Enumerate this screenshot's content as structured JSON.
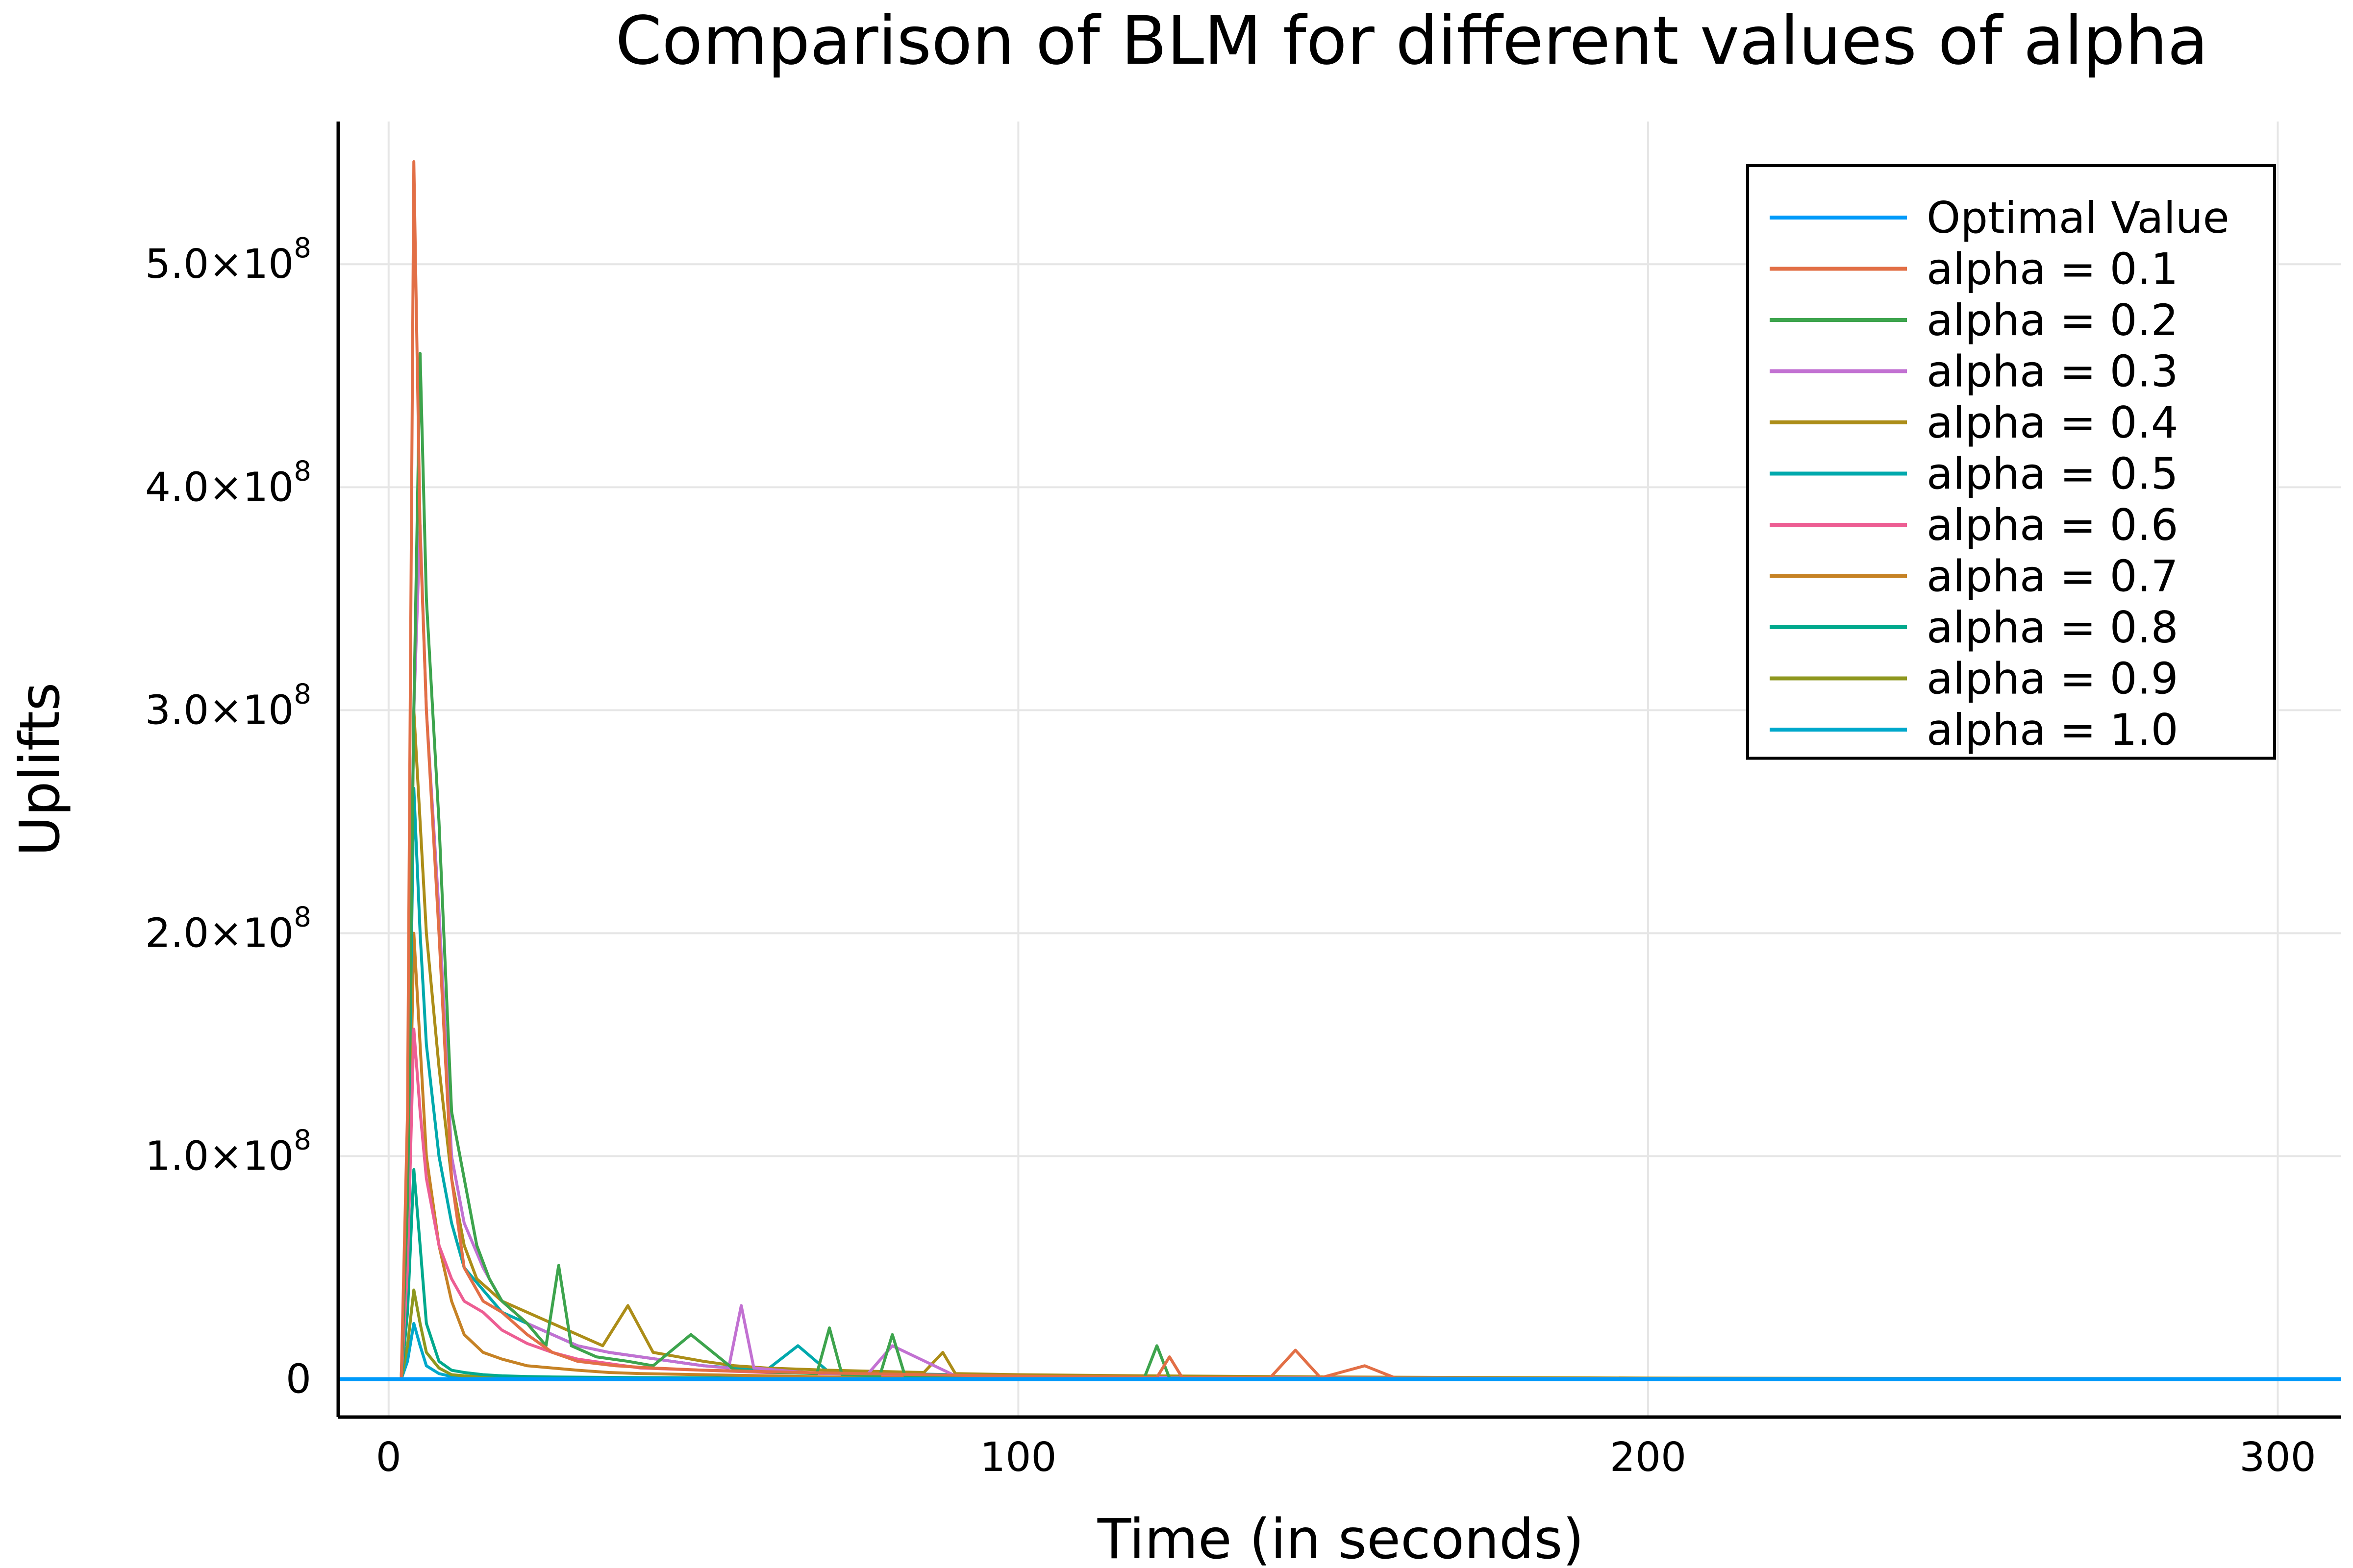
{
  "chart_data": {
    "type": "line",
    "title": "Comparison of BLM for different values of alpha",
    "xlabel": "Time (in seconds)",
    "ylabel": "Uplifts",
    "xlim": [
      -8,
      310
    ],
    "ylim": [
      -17000000,
      564000000
    ],
    "grid": true,
    "legend_position": "top-right",
    "x_ticks": [
      {
        "value": 0,
        "label": "0"
      },
      {
        "value": 100,
        "label": "100"
      },
      {
        "value": 200,
        "label": "200"
      },
      {
        "value": 300,
        "label": "300"
      }
    ],
    "y_ticks": [
      {
        "value": 0,
        "mantissa": "0",
        "exponent": ""
      },
      {
        "value": 100000000,
        "mantissa": "1.0×10",
        "exponent": "8"
      },
      {
        "value": 200000000,
        "mantissa": "2.0×10",
        "exponent": "8"
      },
      {
        "value": 300000000,
        "mantissa": "3.0×10",
        "exponent": "8"
      },
      {
        "value": 400000000,
        "mantissa": "4.0×10",
        "exponent": "8"
      },
      {
        "value": 500000000,
        "mantissa": "5.0×10",
        "exponent": "8"
      }
    ],
    "series": [
      {
        "name": "Optimal Value",
        "color": "#009AFA",
        "x": [
          -8,
          310
        ],
        "y": [
          0,
          0
        ]
      },
      {
        "name": "alpha = 0.1",
        "color": "#E26F46",
        "x": [
          0,
          1,
          2,
          3,
          4,
          5,
          6,
          8,
          10,
          12,
          15,
          18,
          22,
          26,
          30,
          36,
          42,
          50,
          58,
          66,
          75,
          85,
          95,
          105,
          115,
          122,
          124,
          126,
          140,
          144,
          148,
          155,
          160,
          180,
          200,
          300
        ],
        "y": [
          0,
          0,
          0,
          120000000,
          546000000,
          380000000,
          300000000,
          200000000,
          90000000,
          50000000,
          35000000,
          30000000,
          20000000,
          12000000,
          8000000,
          6000000,
          5000000,
          4000000,
          3500000,
          3000000,
          2500000,
          2000000,
          1500000,
          1200000,
          1000000,
          800000,
          10000000,
          800000,
          700000,
          13000000,
          600000,
          6000000,
          400000,
          300000,
          200000,
          100000
        ]
      },
      {
        "name": "alpha = 0.2",
        "color": "#3DA44D",
        "x": [
          0,
          1,
          2,
          3,
          4,
          5,
          6,
          8,
          10,
          12,
          14,
          16,
          18,
          22,
          25,
          27,
          29,
          33,
          38,
          42,
          48,
          55,
          62,
          68,
          70,
          72,
          78,
          80,
          82,
          90,
          100,
          110,
          120,
          122,
          124,
          140,
          160,
          200,
          300
        ],
        "y": [
          0,
          0,
          0,
          80000000,
          300000000,
          460000000,
          350000000,
          250000000,
          120000000,
          90000000,
          60000000,
          45000000,
          35000000,
          25000000,
          15000000,
          51000000,
          15000000,
          10000000,
          8000000,
          6000000,
          20000000,
          4000000,
          3000000,
          2500000,
          23000000,
          2000000,
          1500000,
          20000000,
          1500000,
          1000000,
          800000,
          700000,
          600000,
          15000000,
          500000,
          400000,
          300000,
          200000,
          100000
        ]
      },
      {
        "name": "alpha = 0.3",
        "color": "#C271D2",
        "x": [
          0,
          1,
          2,
          3,
          4,
          5,
          6,
          8,
          10,
          12,
          15,
          18,
          22,
          26,
          30,
          35,
          40,
          45,
          50,
          54,
          56,
          58,
          62,
          66,
          70,
          76,
          80,
          90,
          100,
          120,
          150,
          200,
          300
        ],
        "y": [
          0,
          0,
          0,
          100000000,
          300000000,
          383000000,
          300000000,
          210000000,
          100000000,
          70000000,
          50000000,
          35000000,
          25000000,
          20000000,
          15000000,
          12000000,
          10000000,
          8000000,
          6000000,
          5000000,
          33000000,
          5000000,
          4000000,
          3000000,
          2500000,
          2000000,
          15000000,
          1500000,
          1000000,
          800000,
          500000,
          300000,
          100000
        ]
      },
      {
        "name": "alpha = 0.4",
        "color": "#AC8D18",
        "x": [
          0,
          1,
          2,
          3,
          4,
          5,
          6,
          8,
          10,
          12,
          14,
          16,
          18,
          22,
          26,
          30,
          34,
          38,
          42,
          46,
          50,
          55,
          60,
          70,
          85,
          88,
          90,
          100,
          120,
          150,
          200,
          300
        ],
        "y": [
          0,
          0,
          0,
          90000000,
          300000000,
          250000000,
          200000000,
          140000000,
          90000000,
          60000000,
          45000000,
          40000000,
          35000000,
          30000000,
          25000000,
          20000000,
          15000000,
          33000000,
          12000000,
          10000000,
          8000000,
          6000000,
          5000000,
          4000000,
          3000000,
          12000000,
          2500000,
          2000000,
          1500000,
          1000000,
          500000,
          200000
        ]
      },
      {
        "name": "alpha = 0.5",
        "color": "#00A9AD",
        "x": [
          0,
          1,
          2,
          3,
          4,
          5,
          6,
          8,
          10,
          12,
          15,
          18,
          22,
          26,
          30,
          35,
          40,
          45,
          50,
          55,
          60,
          65,
          70,
          80,
          90,
          100,
          120,
          150,
          200,
          300
        ],
        "y": [
          0,
          0,
          0,
          80000000,
          265000000,
          200000000,
          150000000,
          100000000,
          70000000,
          50000000,
          40000000,
          30000000,
          25000000,
          20000000,
          15000000,
          12000000,
          10000000,
          8000000,
          6000000,
          5000000,
          4000000,
          15000000,
          3000000,
          2500000,
          2000000,
          1500000,
          1000000,
          500000,
          300000,
          100000
        ]
      },
      {
        "name": "alpha = 0.6",
        "color": "#ED5E93",
        "x": [
          0,
          1,
          2,
          3,
          4,
          5,
          6,
          8,
          10,
          12,
          15,
          18,
          22,
          26,
          30,
          35,
          40,
          50,
          60,
          70,
          80,
          100,
          130,
          170,
          200,
          300
        ],
        "y": [
          0,
          0,
          0,
          50000000,
          157000000,
          120000000,
          90000000,
          60000000,
          45000000,
          35000000,
          30000000,
          22000000,
          16000000,
          12000000,
          9000000,
          7000000,
          5000000,
          4000000,
          3000000,
          2500000,
          2000000,
          1500000,
          1000000,
          600000,
          400000,
          100000
        ]
      },
      {
        "name": "alpha = 0.7",
        "color": "#C68225",
        "x": [
          0,
          1,
          2,
          3,
          4,
          5,
          6,
          8,
          10,
          12,
          15,
          18,
          22,
          26,
          30,
          35,
          40,
          50,
          60,
          70,
          90,
          110,
          140,
          180,
          200,
          300
        ],
        "y": [
          0,
          0,
          0,
          60000000,
          200000000,
          150000000,
          100000000,
          60000000,
          35000000,
          20000000,
          12000000,
          9000000,
          6000000,
          5000000,
          4000000,
          3000000,
          2500000,
          2000000,
          1500000,
          1000000,
          800000,
          600000,
          400000,
          300000,
          200000,
          100000
        ]
      },
      {
        "name": "alpha = 0.8",
        "color": "#00A98D",
        "x": [
          0,
          1,
          2,
          3,
          4,
          5,
          6,
          8,
          10,
          12,
          15,
          18,
          22,
          26,
          30,
          35,
          40,
          50,
          60,
          70,
          90,
          110,
          150,
          200,
          300
        ],
        "y": [
          0,
          0,
          0,
          30000000,
          94000000,
          60000000,
          25000000,
          8000000,
          4000000,
          3000000,
          2000000,
          1500000,
          1200000,
          1000000,
          900000,
          800000,
          700000,
          600000,
          500000,
          400000,
          300000,
          250000,
          200000,
          150000,
          100000
        ]
      },
      {
        "name": "alpha = 0.9",
        "color": "#8E971E",
        "x": [
          0,
          1,
          2,
          3,
          4,
          5,
          6,
          8,
          10,
          12,
          15,
          18,
          22,
          26,
          30,
          35,
          40,
          50,
          60,
          80,
          100,
          130,
          160,
          200,
          300
        ],
        "y": [
          0,
          0,
          0,
          15000000,
          40000000,
          25000000,
          12000000,
          5000000,
          2000000,
          1500000,
          1000000,
          800000,
          600000,
          500000,
          400000,
          350000,
          300000,
          250000,
          200000,
          150000,
          120000,
          100000,
          80000,
          60000,
          50000
        ]
      },
      {
        "name": "alpha = 1.0",
        "color": "#00A8CB",
        "x": [
          0,
          1,
          2,
          3,
          4,
          5,
          6,
          8,
          10,
          12,
          15,
          18,
          22,
          26,
          30,
          35,
          40,
          50,
          60,
          80,
          100,
          130,
          160,
          200,
          300
        ],
        "y": [
          0,
          0,
          0,
          8000000,
          25000000,
          15000000,
          6000000,
          2500000,
          1200000,
          900000,
          700000,
          500000,
          400000,
          300000,
          250000,
          200000,
          150000,
          120000,
          100000,
          80000,
          60000,
          50000,
          40000,
          30000,
          20000
        ]
      }
    ]
  }
}
